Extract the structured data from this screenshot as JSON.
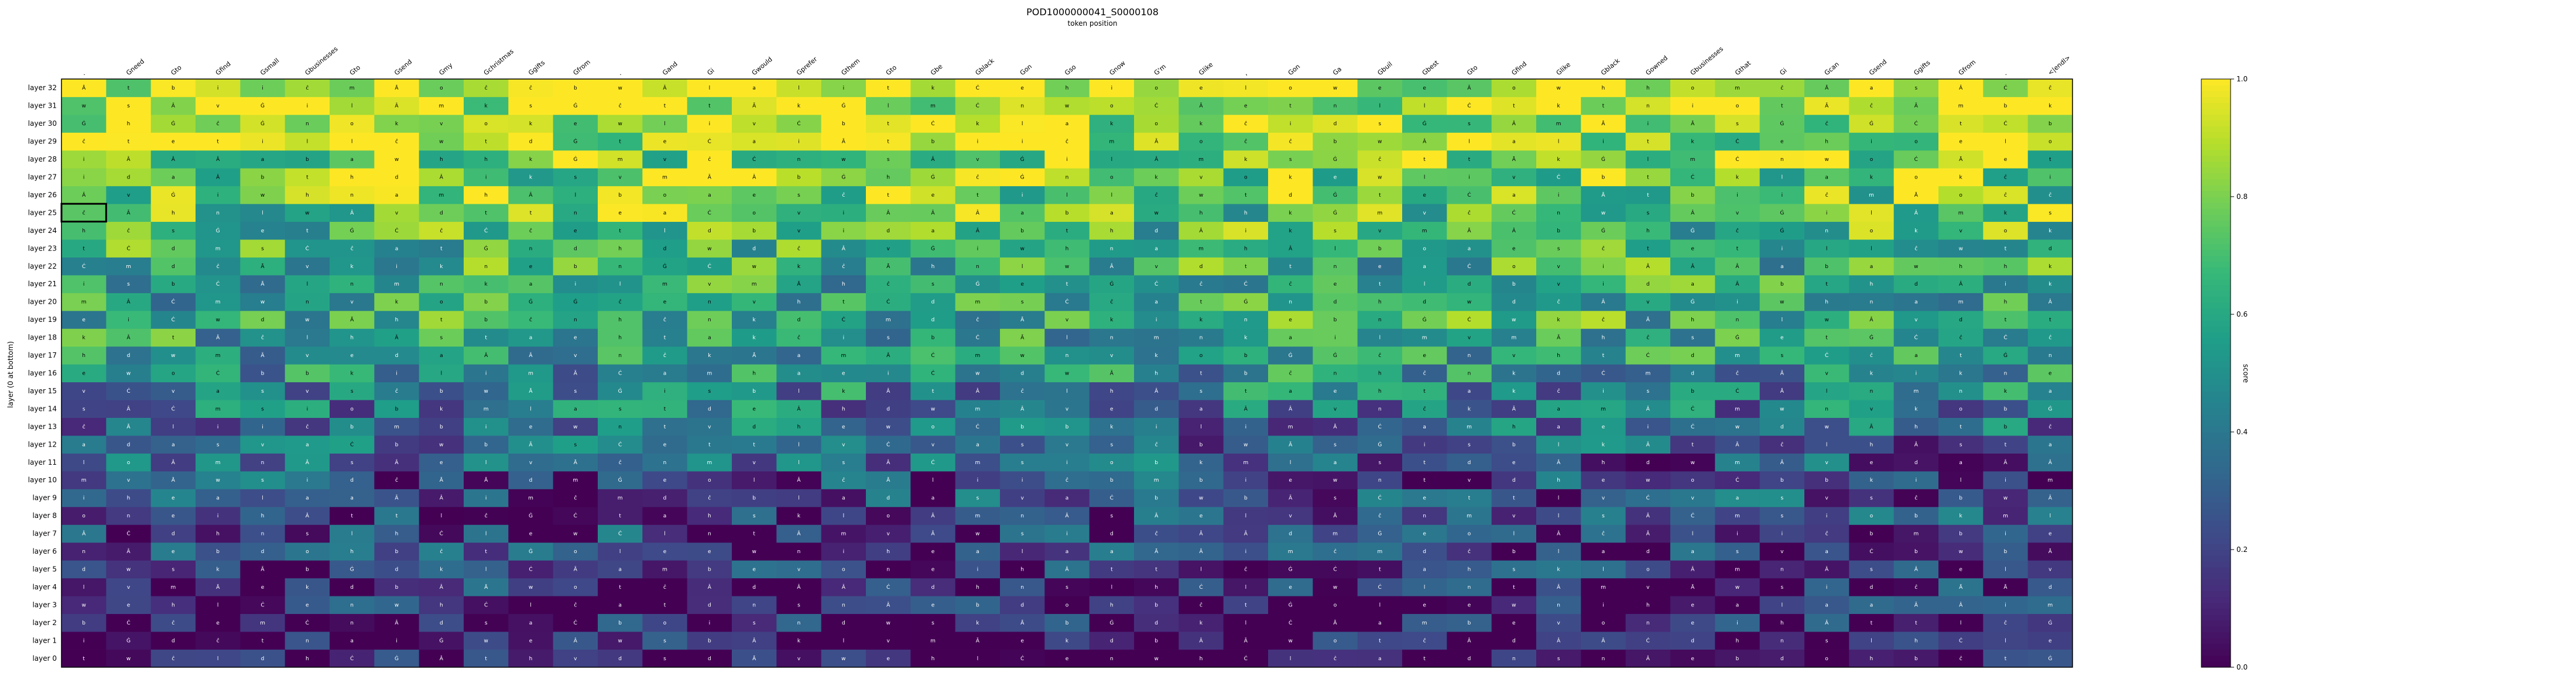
{
  "chart_data": {
    "type": "heatmap",
    "title": "POD1000000041_S0000108",
    "xlabel": "token position",
    "ylabel": "layer (0 at bottom)",
    "colorbar_label": "score",
    "colorscale": "viridis",
    "zlim": [
      0,
      1
    ],
    "colorbar_ticks": [
      "0.0",
      "0.2",
      "0.4",
      "0.6",
      "0.8",
      "1.0"
    ],
    "x_tokens": [
      ".",
      "Gneed",
      "Gto",
      "Gfind",
      "Gsmall",
      "Gbusinesses",
      "Gto",
      "Gsend",
      "Gmy",
      "Gchristmas",
      "Ggifts",
      "Gfrom",
      ".",
      "Gand",
      "Gi",
      "Gwould",
      "Gprefer",
      "Gthem",
      "Gto",
      "Gbe",
      "Gblack",
      "Gon",
      "Gso",
      "Gnow",
      "G'm",
      "Glike",
      ",",
      "Gon",
      "Ga",
      "Gbuil",
      "Gbest",
      "Gto",
      "Gfind",
      "Glike",
      "Gblack",
      "Gowned",
      "Gbusinesses",
      "Gthat",
      "Gi",
      "Gcan",
      "Gsend",
      "Ggifts",
      "Gfrom",
      ".",
      "<|endl>"
    ],
    "y_labels": [
      "layer 0",
      "layer 1",
      "layer 2",
      "layer 3",
      "layer 4",
      "layer 5",
      "layer 6",
      "layer 7",
      "layer 8",
      "layer 9",
      "layer 10",
      "layer 11",
      "layer 12",
      "layer 13",
      "layer 14",
      "layer 15",
      "layer 16",
      "layer 17",
      "layer 18",
      "layer 19",
      "layer 20",
      "layer 21",
      "layer 22",
      "layer 23",
      "layer 24",
      "layer 25",
      "layer 26",
      "layer 27",
      "layer 28",
      "layer 29",
      "layer 30",
      "layer 31",
      "layer 32"
    ],
    "highlight": {
      "layer": 25,
      "token_index": 0
    }
  }
}
